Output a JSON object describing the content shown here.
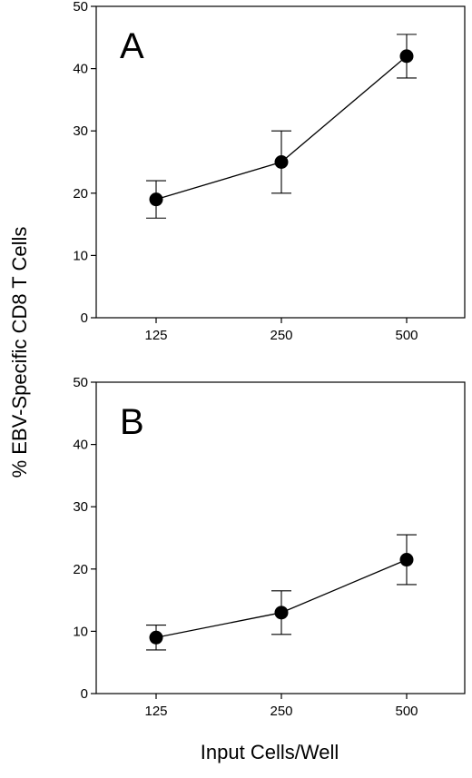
{
  "ylabel": "% EBV-Specific CD8 T Cells",
  "xlabel": "Input Cells/Well",
  "chart_data": [
    {
      "type": "line",
      "panel_label": "A",
      "categories": [
        "125",
        "250",
        "500"
      ],
      "values": [
        19,
        25,
        42
      ],
      "error_low": [
        16,
        20,
        38.5
      ],
      "error_high": [
        22,
        30,
        45.5
      ],
      "yticks": [
        "0",
        "10",
        "20",
        "30",
        "40",
        "50"
      ],
      "ylim": [
        0,
        50
      ],
      "grid": false,
      "legend": "none"
    },
    {
      "type": "line",
      "panel_label": "B",
      "categories": [
        "125",
        "250",
        "500"
      ],
      "values": [
        9,
        13,
        21.5
      ],
      "error_low": [
        7,
        9.5,
        17.5
      ],
      "error_high": [
        11,
        16.5,
        25.5
      ],
      "yticks": [
        "0",
        "10",
        "20",
        "30",
        "40",
        "50"
      ],
      "ylim": [
        0,
        50
      ],
      "grid": false,
      "legend": "none"
    }
  ]
}
